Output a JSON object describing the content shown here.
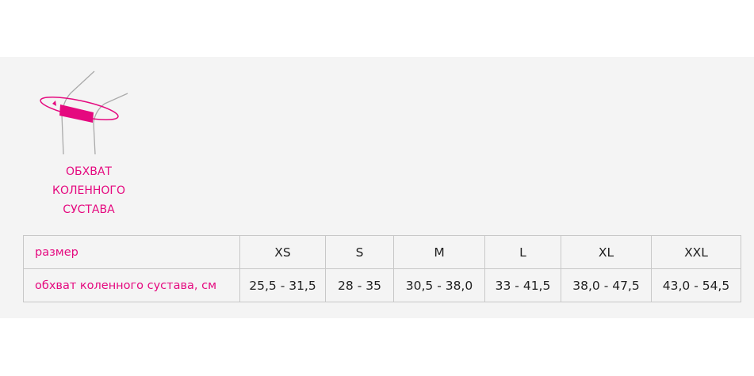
{
  "illustration": {
    "icon": "knee-measure-icon",
    "caption": [
      "ОБХВАТ",
      "КОЛЕННОГО",
      "СУСТАВА"
    ]
  },
  "accent_color": "#e5097f",
  "table": {
    "rows": [
      {
        "label": "размер",
        "values": [
          "XS",
          "S",
          "M",
          "L",
          "XL",
          "XXL"
        ]
      },
      {
        "label": "обхват коленного сустава, см",
        "values": [
          "25,5 - 31,5",
          "28 - 35",
          "30,5 - 38,0",
          "33 - 41,5",
          "38,0 - 47,5",
          "43,0 - 54,5"
        ]
      }
    ]
  }
}
